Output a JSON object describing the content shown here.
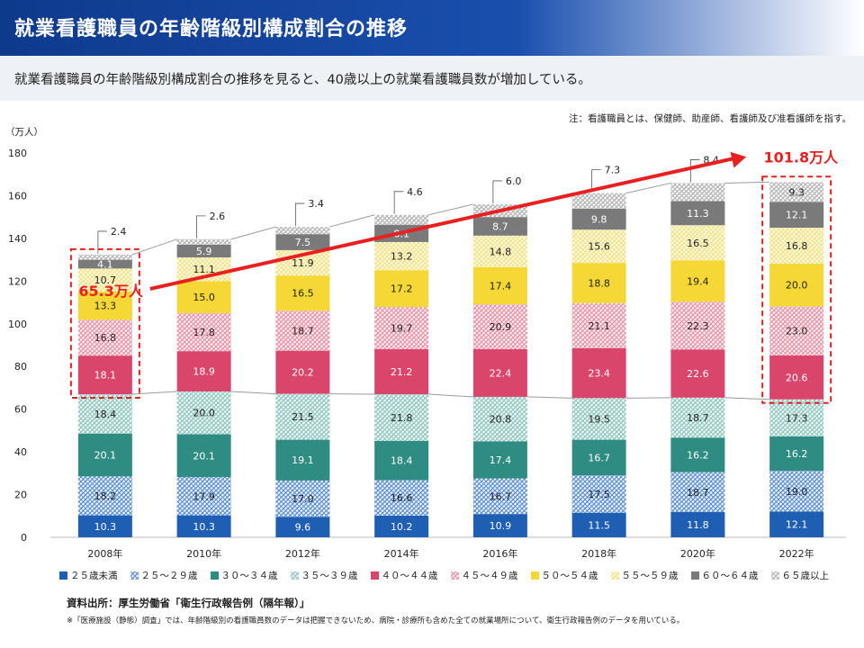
{
  "header": {
    "title": "就業看護職員の年齢階級別構成割合の推移",
    "subtitle": "就業看護職員の年齢階級別構成割合の推移を見ると、40歳以上の就業看護職員数が増加している。"
  },
  "note": "注：看護職員とは、保健師、助産師、看護師及び准看護師を指す。",
  "unit_label": "（万人）",
  "source": "資料出所：厚生労働省「衛生行政報告例（隔年報）」",
  "footnote": "※「医療施設（静態）調査」では、年齢階級別の看護職員数のデータは把握できないため、病院・診療所も含めた全ての就業場所について、衛生行政報告例のデータを用いている。",
  "chart_data": {
    "type": "bar",
    "stacked": true,
    "categories": [
      "2008年",
      "2010年",
      "2012年",
      "2014年",
      "2016年",
      "2018年",
      "2020年",
      "2022年"
    ],
    "ylim": [
      0,
      180
    ],
    "yticks": [
      "0",
      "20",
      "40",
      "60",
      "80",
      "100",
      "120",
      "140",
      "160",
      "180"
    ],
    "ytick_values": [
      0,
      20,
      40,
      60,
      80,
      100,
      120,
      140,
      160,
      180
    ],
    "grid": false,
    "legend_position": "bottom",
    "series": [
      {
        "name": "２５歳未満",
        "color": "#1f5fb3",
        "pattern": "solid",
        "values": [
          10.3,
          10.3,
          9.6,
          10.2,
          10.9,
          11.5,
          11.8,
          12.1
        ]
      },
      {
        "name": "２５～２９歳",
        "color": "#5b8fd6",
        "pattern": "hatch",
        "values": [
          18.2,
          17.9,
          17.0,
          16.6,
          16.7,
          17.5,
          18.7,
          19.0
        ]
      },
      {
        "name": "３０～３４歳",
        "color": "#2e8c82",
        "pattern": "solid",
        "values": [
          20.1,
          20.1,
          19.1,
          18.4,
          17.4,
          16.7,
          16.2,
          16.2
        ]
      },
      {
        "name": "３５～３９歳",
        "color": "#8cc7bf",
        "pattern": "hatch",
        "values": [
          18.4,
          20.0,
          21.5,
          21.8,
          20.8,
          19.5,
          18.7,
          17.3
        ]
      },
      {
        "name": "４０～４４歳",
        "color": "#d9456b",
        "pattern": "solid",
        "values": [
          18.1,
          18.9,
          20.2,
          21.2,
          22.4,
          23.4,
          22.6,
          20.6
        ]
      },
      {
        "name": "４５～４９歳",
        "color": "#ec8fa5",
        "pattern": "hatch",
        "values": [
          16.8,
          17.8,
          18.7,
          19.7,
          20.9,
          21.1,
          22.3,
          23.0
        ]
      },
      {
        "name": "５０～５４歳",
        "color": "#f5d736",
        "pattern": "solid",
        "values": [
          13.3,
          15.0,
          16.5,
          17.2,
          17.4,
          18.8,
          19.4,
          20.0
        ]
      },
      {
        "name": "５５～５９歳",
        "color": "#f3e27e",
        "pattern": "hatch",
        "values": [
          10.7,
          11.1,
          11.9,
          13.2,
          14.8,
          15.6,
          16.5,
          16.8
        ]
      },
      {
        "name": "６０～６４歳",
        "color": "#7a7a7a",
        "pattern": "solid",
        "values": [
          4.1,
          5.9,
          7.5,
          8.1,
          8.7,
          9.8,
          11.3,
          12.1
        ]
      },
      {
        "name": "６５歳以上",
        "color": "#b5b5b5",
        "pattern": "hatch",
        "values": [
          2.4,
          2.6,
          3.4,
          4.6,
          6.0,
          7.3,
          8.4,
          9.3
        ]
      }
    ],
    "annotations": {
      "start_total": "65.3万人",
      "end_total": "101.8万人",
      "highlight_categories": [
        "2008年",
        "2022年"
      ],
      "highlight_color": "#e8201f"
    }
  }
}
